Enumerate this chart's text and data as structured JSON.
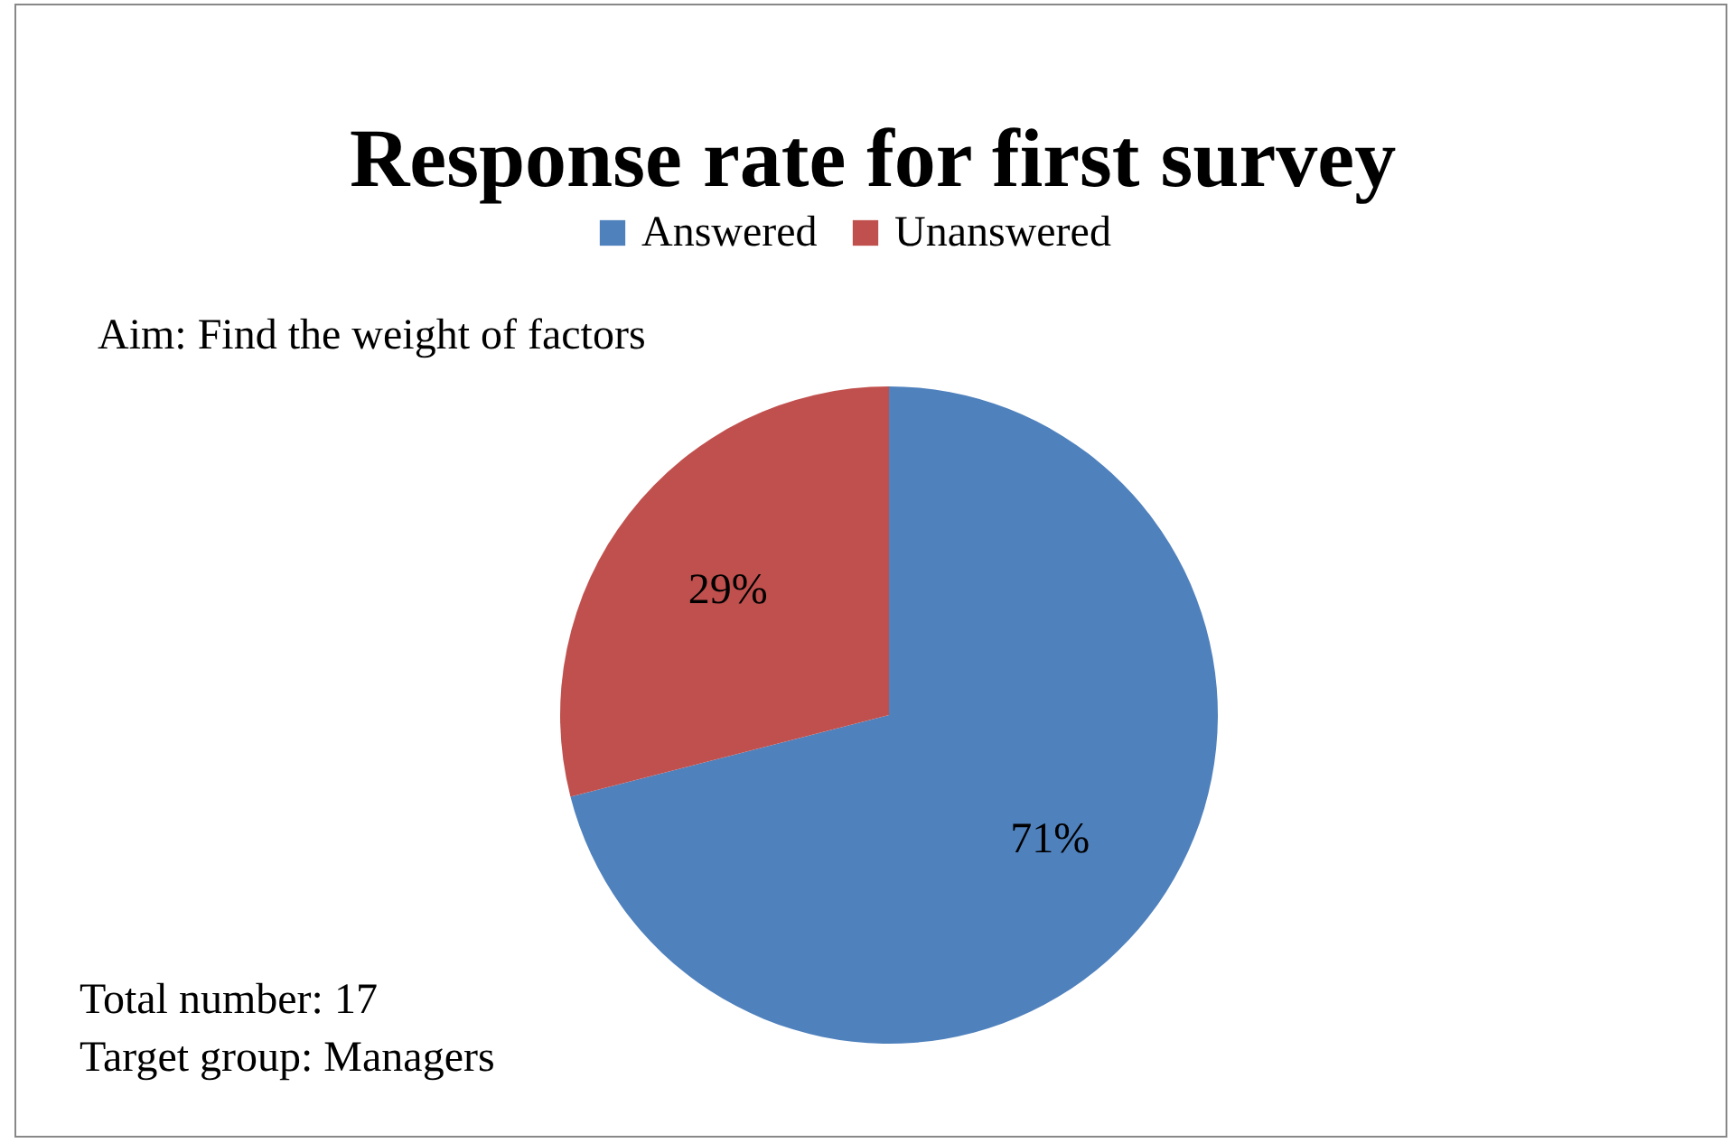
{
  "chart_data": {
    "type": "pie",
    "title": "Response rate for first survey",
    "categories": [
      "Answered",
      "Unanswered"
    ],
    "values": [
      71,
      29
    ],
    "colors": [
      "#4f81bd",
      "#c0504d"
    ],
    "value_labels": [
      "71%",
      "29%"
    ],
    "legend": "top",
    "annotations": [
      "Aim: Find the weight of factors",
      "Total number: 17",
      "Target group: Managers"
    ]
  }
}
